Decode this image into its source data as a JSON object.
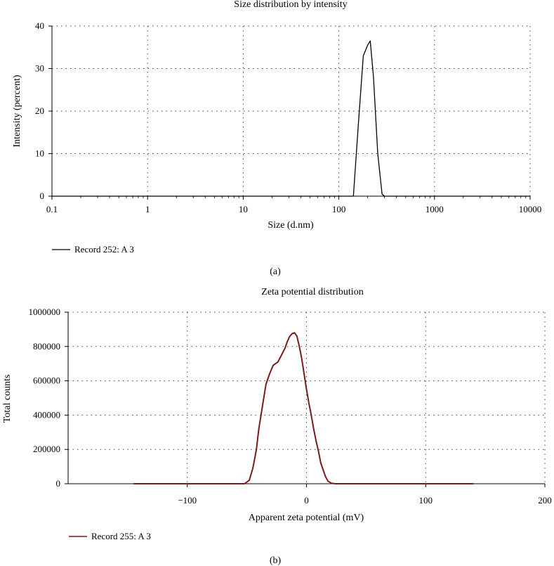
{
  "chart_data": [
    {
      "type": "line",
      "title": "Size distribution by intensity",
      "xlabel": "Size (d.nm)",
      "ylabel": "Intensity (percent)",
      "x_scale": "log",
      "xlim": [
        0.1,
        10000
      ],
      "ylim": [
        0,
        40
      ],
      "x_ticks": [
        "0.1",
        "1",
        "10",
        "100",
        "1000",
        "10000"
      ],
      "y_ticks": [
        "0",
        "10",
        "20",
        "30",
        "40"
      ],
      "grid": true,
      "legend_position": "bottom-left",
      "caption": "(a)",
      "series": [
        {
          "name": "Record 252: A 3",
          "color": "#000000",
          "x": [
            0.1,
            142,
            160,
            180,
            200,
            213,
            230,
            255,
            283,
            300,
            10000
          ],
          "y": [
            0,
            0,
            17,
            33,
            35.5,
            36.5,
            28,
            10,
            0.5,
            0,
            0
          ]
        }
      ]
    },
    {
      "type": "line",
      "title": "Zeta potential distribution",
      "xlabel": "Apparent zeta potential (mV)",
      "ylabel": "Total counts",
      "xlim": [
        -200,
        200
      ],
      "ylim": [
        0,
        1000000
      ],
      "x_ticks": [
        "−100",
        "0",
        "100",
        "200"
      ],
      "y_ticks": [
        "0",
        "200000",
        "400000",
        "600000",
        "800000",
        "1000000"
      ],
      "grid": true,
      "legend_position": "bottom-left",
      "caption": "(b)",
      "series": [
        {
          "name": "Record 255: A 3",
          "color": "#7a1a1a",
          "x": [
            -145,
            -52,
            -48,
            -45,
            -42,
            -40,
            -37,
            -34,
            -31,
            -28,
            -24,
            -21,
            -18,
            -16,
            -14,
            -12,
            -10,
            -8,
            -6,
            -4,
            -2,
            0,
            2,
            4,
            6,
            8,
            10,
            12,
            14,
            16,
            18,
            21,
            24,
            140
          ],
          "y": [
            0,
            0,
            20000,
            90000,
            200000,
            320000,
            450000,
            580000,
            640000,
            690000,
            710000,
            750000,
            790000,
            830000,
            860000,
            875000,
            880000,
            860000,
            800000,
            730000,
            640000,
            550000,
            470000,
            400000,
            320000,
            250000,
            190000,
            120000,
            80000,
            40000,
            15000,
            3000,
            0,
            0
          ]
        }
      ]
    }
  ]
}
